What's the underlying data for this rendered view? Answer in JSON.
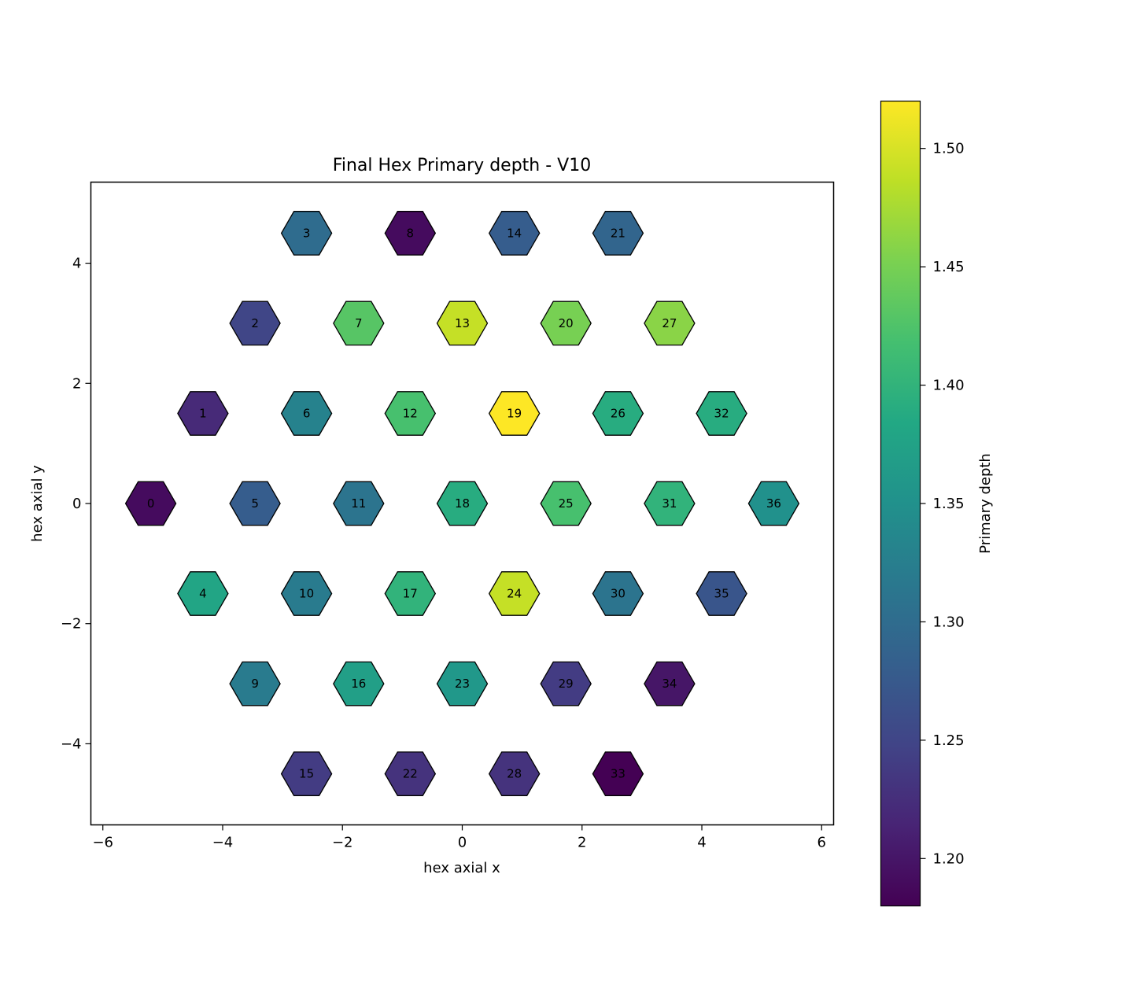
{
  "chart_data": {
    "type": "hexbin",
    "title": "Final Hex Primary depth - V10",
    "xlabel": "hex axial x",
    "ylabel": "hex axial y",
    "xlim": [
      -6.2,
      6.2
    ],
    "ylim": [
      -5.35,
      5.35
    ],
    "xticks": [
      -6,
      -4,
      -2,
      0,
      2,
      4,
      6
    ],
    "yticks": [
      -4,
      -2,
      0,
      2,
      4
    ],
    "xtick_labels": [
      "−6",
      "−4",
      "−2",
      "0",
      "2",
      "4",
      "6"
    ],
    "ytick_labels": [
      "−4",
      "−2",
      "0",
      "2",
      "4"
    ],
    "colorbar": {
      "label": "Primary depth",
      "range": [
        1.18,
        1.52
      ],
      "ticks": [
        1.2,
        1.25,
        1.3,
        1.35,
        1.4,
        1.45,
        1.5
      ],
      "tick_labels": [
        "1.20",
        "1.25",
        "1.30",
        "1.35",
        "1.40",
        "1.45",
        "1.50"
      ],
      "colormap": "viridis"
    },
    "cells": [
      {
        "id": "0",
        "x": -5.2,
        "y": 0.0,
        "value": 1.19
      },
      {
        "id": "1",
        "x": -4.33,
        "y": 1.5,
        "value": 1.22
      },
      {
        "id": "2",
        "x": -3.46,
        "y": 3.0,
        "value": 1.25
      },
      {
        "id": "3",
        "x": -2.6,
        "y": 4.5,
        "value": 1.3
      },
      {
        "id": "4",
        "x": -4.33,
        "y": -1.5,
        "value": 1.38
      },
      {
        "id": "5",
        "x": -3.46,
        "y": 0.0,
        "value": 1.28
      },
      {
        "id": "6",
        "x": -2.6,
        "y": 1.5,
        "value": 1.33
      },
      {
        "id": "7",
        "x": -1.73,
        "y": 3.0,
        "value": 1.43
      },
      {
        "id": "8",
        "x": -0.87,
        "y": 4.5,
        "value": 1.19
      },
      {
        "id": "9",
        "x": -3.46,
        "y": -3.0,
        "value": 1.32
      },
      {
        "id": "10",
        "x": -2.6,
        "y": -1.5,
        "value": 1.32
      },
      {
        "id": "11",
        "x": -1.73,
        "y": 0.0,
        "value": 1.31
      },
      {
        "id": "12",
        "x": -0.87,
        "y": 1.5,
        "value": 1.42
      },
      {
        "id": "13",
        "x": 0.0,
        "y": 3.0,
        "value": 1.49
      },
      {
        "id": "14",
        "x": 0.87,
        "y": 4.5,
        "value": 1.28
      },
      {
        "id": "15",
        "x": -2.6,
        "y": -4.5,
        "value": 1.24
      },
      {
        "id": "16",
        "x": -1.73,
        "y": -3.0,
        "value": 1.37
      },
      {
        "id": "17",
        "x": -0.87,
        "y": -1.5,
        "value": 1.4
      },
      {
        "id": "18",
        "x": 0.0,
        "y": 0.0,
        "value": 1.39
      },
      {
        "id": "19",
        "x": 0.87,
        "y": 1.5,
        "value": 1.52
      },
      {
        "id": "20",
        "x": 1.73,
        "y": 3.0,
        "value": 1.45
      },
      {
        "id": "21",
        "x": 2.6,
        "y": 4.5,
        "value": 1.29
      },
      {
        "id": "22",
        "x": -0.87,
        "y": -4.5,
        "value": 1.23
      },
      {
        "id": "23",
        "x": 0.0,
        "y": -3.0,
        "value": 1.36
      },
      {
        "id": "24",
        "x": 0.87,
        "y": -1.5,
        "value": 1.49
      },
      {
        "id": "25",
        "x": 1.73,
        "y": 0.0,
        "value": 1.42
      },
      {
        "id": "26",
        "x": 2.6,
        "y": 1.5,
        "value": 1.39
      },
      {
        "id": "27",
        "x": 3.46,
        "y": 3.0,
        "value": 1.46
      },
      {
        "id": "28",
        "x": 0.87,
        "y": -4.5,
        "value": 1.23
      },
      {
        "id": "29",
        "x": 1.73,
        "y": -3.0,
        "value": 1.24
      },
      {
        "id": "30",
        "x": 2.6,
        "y": -1.5,
        "value": 1.31
      },
      {
        "id": "31",
        "x": 3.46,
        "y": 0.0,
        "value": 1.4
      },
      {
        "id": "32",
        "x": 4.33,
        "y": 1.5,
        "value": 1.39
      },
      {
        "id": "33",
        "x": 2.6,
        "y": -4.5,
        "value": 1.18
      },
      {
        "id": "34",
        "x": 3.46,
        "y": -3.0,
        "value": 1.2
      },
      {
        "id": "35",
        "x": 4.33,
        "y": -1.5,
        "value": 1.27
      },
      {
        "id": "36",
        "x": 5.2,
        "y": 0.0,
        "value": 1.35
      }
    ]
  }
}
